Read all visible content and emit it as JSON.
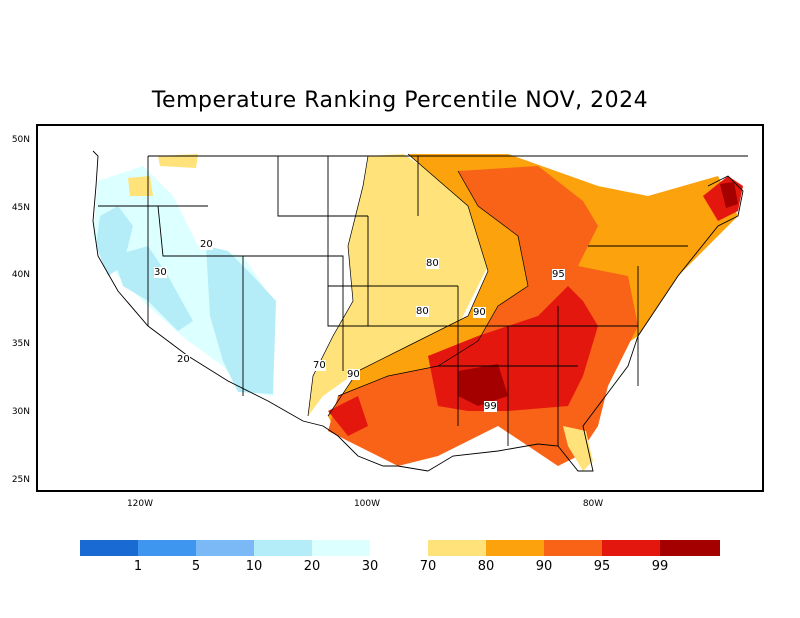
{
  "title": "Temperature Ranking Percentile NOV, 2024",
  "lat_ticks": [
    "50N",
    "45N",
    "40N",
    "35N",
    "30N",
    "25N"
  ],
  "lon_ticks": [
    "120W",
    "100W",
    "80W"
  ],
  "contour_labels": [
    "20",
    "30",
    "20",
    "70",
    "90",
    "80",
    "80",
    "90",
    "95",
    "99"
  ],
  "colorbar": {
    "cold_colors": [
      "#1a6ad4",
      "#3f96ee",
      "#7ab9f5",
      "#b4ecf7",
      "#dcffff"
    ],
    "cold_labels": [
      "1",
      "5",
      "10",
      "20",
      "30"
    ],
    "warm_colors": [
      "#ffe27a",
      "#fba20c",
      "#f86318",
      "#e4170f",
      "#a50000"
    ],
    "warm_labels": [
      "70",
      "80",
      "90",
      "95",
      "99"
    ]
  }
}
